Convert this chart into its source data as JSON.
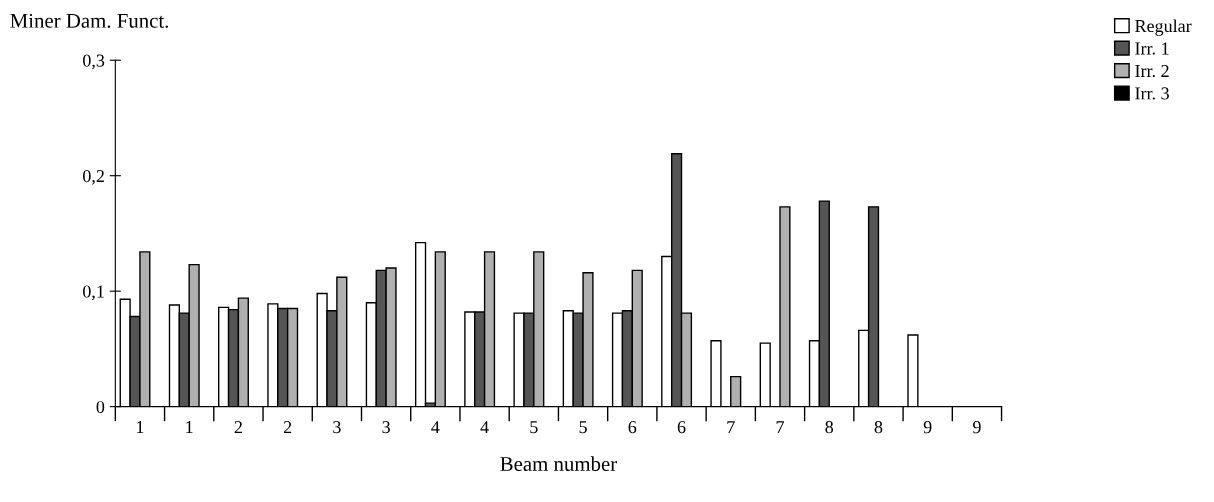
{
  "chart_data": {
    "type": "bar",
    "ylabel": "Miner Dam. Funct.",
    "xlabel": "Beam number",
    "categories": [
      "1",
      "1",
      "2",
      "2",
      "3",
      "3",
      "4",
      "4",
      "5",
      "5",
      "6",
      "6",
      "7",
      "7",
      "8",
      "8",
      "9",
      "9"
    ],
    "series": [
      {
        "name": "Regular",
        "color": "#ffffff",
        "values": [
          0.093,
          0.088,
          0.086,
          0.089,
          0.098,
          0.09,
          0.142,
          0.082,
          0.081,
          0.083,
          0.081,
          0.13,
          0.057,
          0.055,
          0.057,
          0.066,
          0.062,
          null
        ]
      },
      {
        "name": "Irr. 1",
        "color": "#555555",
        "values": [
          0.078,
          0.081,
          0.084,
          0.085,
          0.083,
          0.118,
          0.003,
          0.082,
          0.081,
          0.081,
          0.083,
          0.219,
          null,
          null,
          0.178,
          0.173,
          null,
          null
        ]
      },
      {
        "name": "Irr. 2",
        "color": "#b0b0b0",
        "values": [
          0.134,
          0.123,
          0.094,
          0.085,
          0.112,
          0.12,
          0.134,
          0.134,
          0.134,
          0.116,
          0.118,
          0.081,
          0.026,
          0.173,
          null,
          null,
          null,
          null
        ]
      },
      {
        "name": "Irr. 3",
        "color": "#000000",
        "values": [
          null,
          null,
          null,
          null,
          null,
          null,
          null,
          null,
          null,
          null,
          null,
          null,
          null,
          null,
          null,
          null,
          null,
          null
        ]
      }
    ],
    "ylim": [
      0,
      0.3
    ],
    "yticks": [
      {
        "value": 0,
        "label": "0"
      },
      {
        "value": 0.1,
        "label": "0,1"
      },
      {
        "value": 0.2,
        "label": "0,2"
      },
      {
        "value": 0.3,
        "label": "0,3"
      }
    ],
    "grid": false,
    "legend": "top right"
  }
}
